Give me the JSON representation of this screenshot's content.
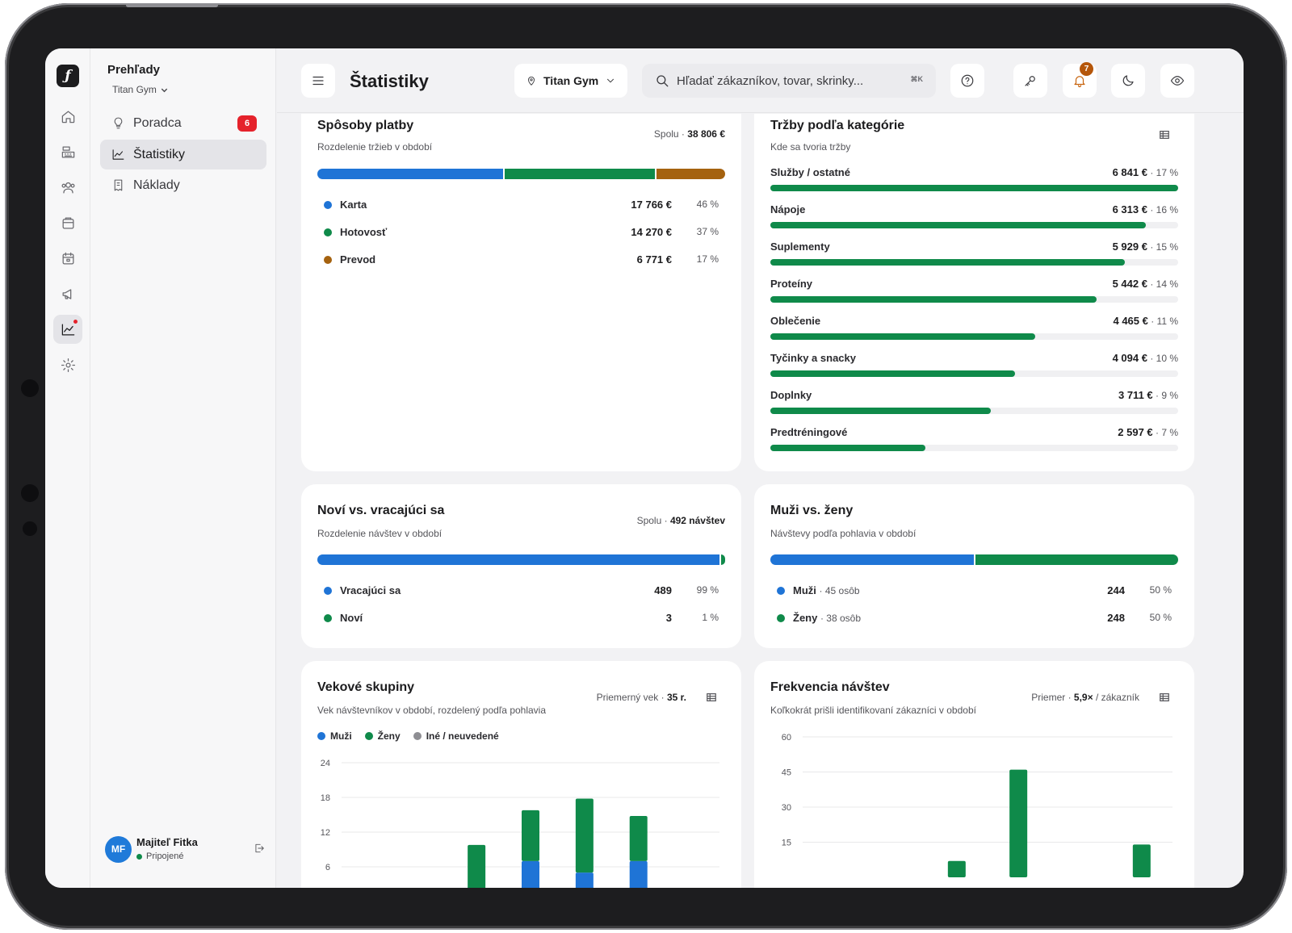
{
  "sidebar": {
    "title": "Prehľady",
    "gym": "Titan Gym",
    "items": [
      {
        "label": "Poradca",
        "badge": "6"
      },
      {
        "label": "Štatistiky"
      },
      {
        "label": "Náklady"
      }
    ],
    "user": {
      "initials": "MF",
      "name": "Majiteľ Fitka",
      "status": "Pripojené"
    }
  },
  "topbar": {
    "title": "Štatistiky",
    "location": "Titan Gym",
    "search_placeholder": "Hľadať zákazníkov, tovar, skrinky...",
    "shortcut": "⌘K",
    "notifications_count": "7"
  },
  "colors": {
    "blue": "#1f74d6",
    "green": "#0f8a4a",
    "brown": "#a5620f",
    "gray": "#8e8e93",
    "red": "#e5222b"
  },
  "payments": {
    "title": "Spôsoby platby",
    "subtitle": "Rozdelenie tržieb v období",
    "total_label": "Spolu ·",
    "total": "38 806 €",
    "shares": [
      46,
      37,
      17
    ],
    "rows": [
      {
        "label": "Karta",
        "value": "17 766 €",
        "pct": "46 %"
      },
      {
        "label": "Hotovosť",
        "value": "14 270 €",
        "pct": "37 %"
      },
      {
        "label": "Prevod",
        "value": "6 771 €",
        "pct": "17 %"
      }
    ]
  },
  "categories": {
    "title": "Tržby podľa kategórie",
    "subtitle": "Kde sa tvoria tržby",
    "rows": [
      {
        "name": "Služby / ostatné",
        "value": "6 841 €",
        "pct": "· 17 %",
        "share": 1.0
      },
      {
        "name": "Nápoje",
        "value": "6 313 €",
        "pct": "· 16 %",
        "share": 0.92
      },
      {
        "name": "Suplementy",
        "value": "5 929 €",
        "pct": "· 15 %",
        "share": 0.87
      },
      {
        "name": "Proteíny",
        "value": "5 442 €",
        "pct": "· 14 %",
        "share": 0.8
      },
      {
        "name": "Oblečenie",
        "value": "4 465 €",
        "pct": "· 11 %",
        "share": 0.65
      },
      {
        "name": "Tyčinky a snacky",
        "value": "4 094 €",
        "pct": "· 10 %",
        "share": 0.6
      },
      {
        "name": "Doplnky",
        "value": "3 711 €",
        "pct": "· 9 %",
        "share": 0.54
      },
      {
        "name": "Predtréningové",
        "value": "2 597 €",
        "pct": "· 7 %",
        "share": 0.38
      }
    ]
  },
  "visits": {
    "title": "Noví vs. vracajúci sa",
    "subtitle": "Rozdelenie návštev v období",
    "total_label": "Spolu ·",
    "total": "492 návštev",
    "shares": [
      99,
      1
    ],
    "rows": [
      {
        "label": "Vracajúci sa",
        "value": "489",
        "pct": "99 %"
      },
      {
        "label": "Noví",
        "value": "3",
        "pct": "1 %"
      }
    ]
  },
  "gender": {
    "title": "Muži vs. ženy",
    "subtitle": "Návštevy podľa pohlavia v období",
    "shares": [
      50,
      50
    ],
    "rows": [
      {
        "label": "Muži",
        "extra": "· 45 osôb",
        "value": "244",
        "pct": "50 %"
      },
      {
        "label": "Ženy",
        "extra": "· 38 osôb",
        "value": "248",
        "pct": "50 %"
      }
    ]
  },
  "age": {
    "title": "Vekové skupiny",
    "subtitle": "Vek návštevníkov v období, rozdelený podľa pohlavia",
    "meta_label": "Priemerný vek ·",
    "meta_value": "35 r.",
    "legend": [
      "Muži",
      "Ženy",
      "Iné / neuvedené"
    ]
  },
  "frequency": {
    "title": "Frekvencia návštev",
    "subtitle": "Koľkokrát prišli identifikovaní zákazníci v období",
    "meta_label": "Priemer ·",
    "meta_value": "5,9×",
    "meta_suffix": "/ zákazník"
  },
  "chart_data": [
    {
      "type": "bar",
      "title": "Vekové skupiny",
      "stacked": true,
      "y_ticks": [
        "24",
        "18",
        "12",
        "6"
      ],
      "ylim": [
        0,
        24
      ],
      "categories": [
        "",
        "",
        "",
        "",
        "",
        "",
        ""
      ],
      "series": [
        {
          "name": "Muži",
          "values": [
            0,
            0,
            2,
            7,
            5,
            7,
            0
          ]
        },
        {
          "name": "Ženy",
          "values": [
            0,
            0,
            8,
            9,
            13,
            8,
            0
          ]
        }
      ]
    },
    {
      "type": "bar",
      "title": "Frekvencia návštev",
      "y_ticks": [
        "60",
        "45",
        "30",
        "15"
      ],
      "ylim": [
        0,
        60
      ],
      "categories": [
        "",
        "",
        "",
        "",
        "",
        ""
      ],
      "values": [
        0,
        0,
        7,
        46,
        0,
        14
      ]
    }
  ]
}
